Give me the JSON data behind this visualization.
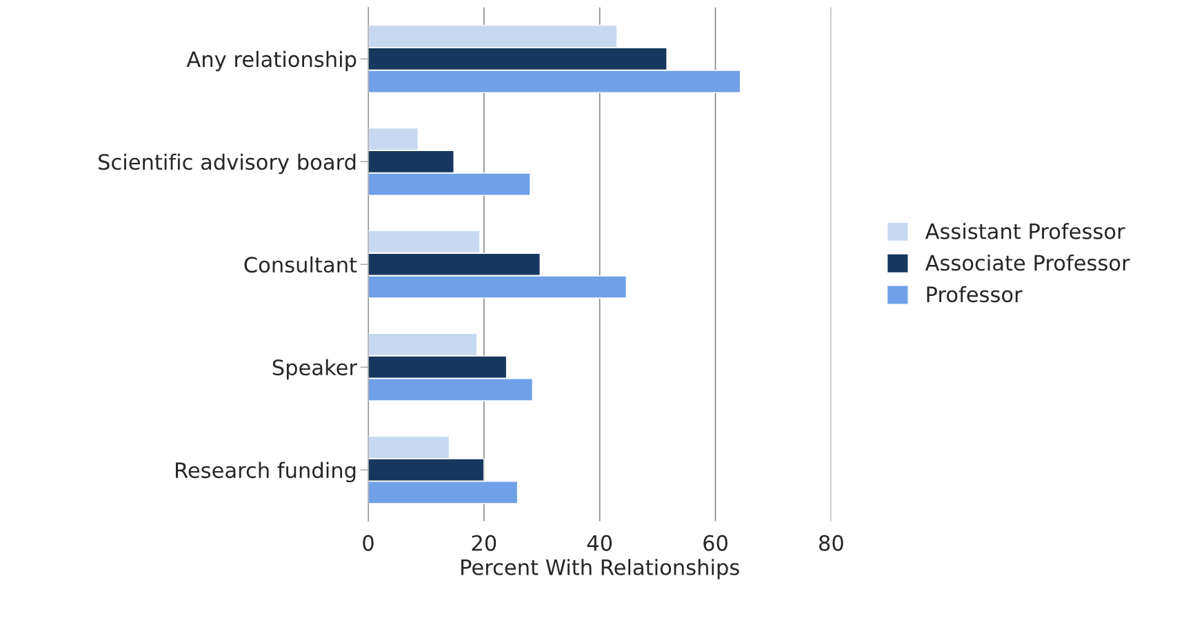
{
  "chart_data": {
    "type": "bar",
    "orientation": "horizontal",
    "xlabel": "Percent With Relationships",
    "categories": [
      "Any relationship",
      "Scientific advisory board",
      "Consultant",
      "Speaker",
      "Research funding"
    ],
    "series": [
      {
        "name": "Assistant Professor",
        "color": "#c6d9f1",
        "values": [
          43,
          8.6,
          19.3,
          18.8,
          14
        ]
      },
      {
        "name": "Associate Professor",
        "color": "#17375e",
        "values": [
          51.6,
          14.8,
          29.7,
          23.9,
          20
        ]
      },
      {
        "name": "Professor",
        "color": "#6fa0e8",
        "values": [
          64.3,
          28,
          44.6,
          28.4,
          25.8
        ]
      }
    ],
    "xlim": [
      0,
      80
    ],
    "xticks": [
      0,
      20,
      40,
      60,
      80
    ],
    "grid": "x",
    "legend": "right"
  }
}
